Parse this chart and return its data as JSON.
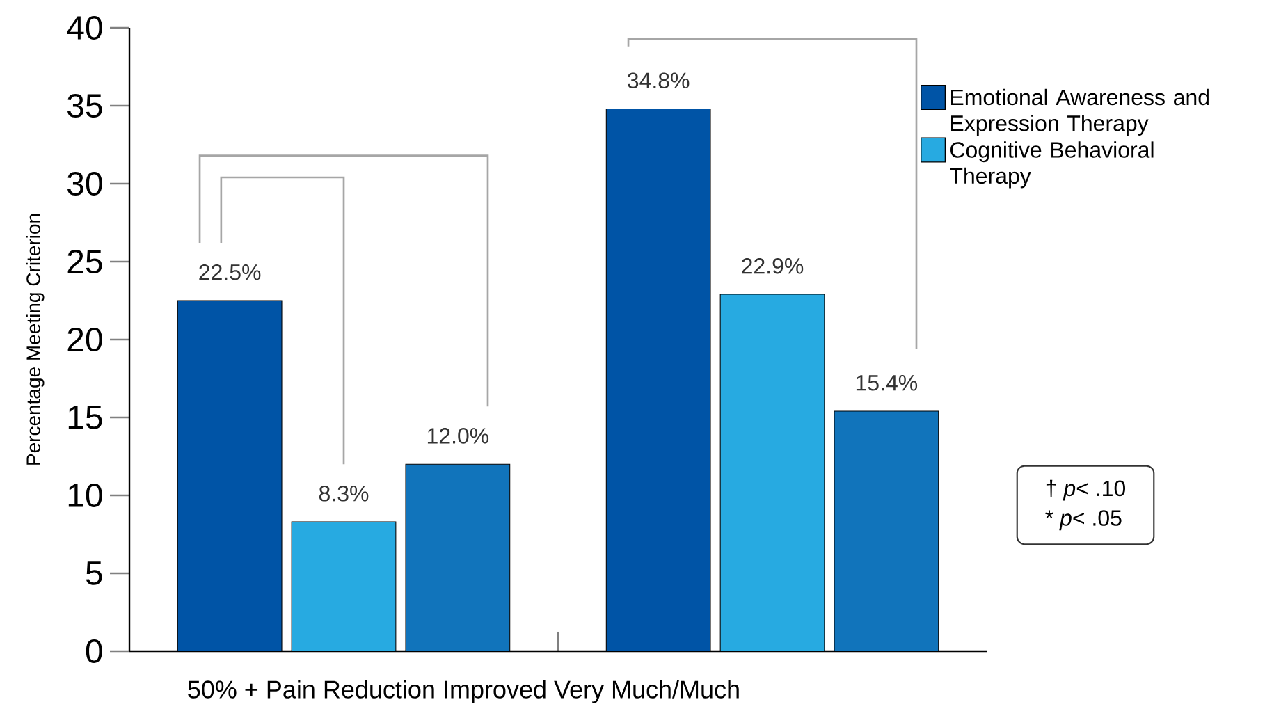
{
  "chart_data": {
    "type": "bar",
    "xlabel": "50% + Pain Reduction Improved Very Much/Much",
    "ylabel": "Percentage Meeting Criterion",
    "categories": [
      null,
      null
    ],
    "series": [
      {
        "name": "Emotional Awareness and Expression Therapy",
        "color": "#0054a6",
        "values": [
          22.5,
          34.8
        ],
        "value_labels": [
          "22.5%",
          "34.8%"
        ]
      },
      {
        "name": "Cognitive Behavioral Therapy",
        "color": "#27aae1",
        "values": [
          8.3,
          22.9
        ],
        "value_labels": [
          "8.3%",
          "22.9%"
        ]
      },
      {
        "color": "#1174bb",
        "values": [
          12.0,
          15.4
        ],
        "value_labels": [
          "12.0%",
          "15.4%"
        ]
      }
    ],
    "ylim": [
      0,
      40
    ],
    "yticks": [
      0,
      5,
      10,
      15,
      20,
      25,
      30,
      35,
      40
    ],
    "grid": false,
    "legend": "top right",
    "annotations": [
      "† *p*< .10",
      "* *p*< .05"
    ]
  }
}
